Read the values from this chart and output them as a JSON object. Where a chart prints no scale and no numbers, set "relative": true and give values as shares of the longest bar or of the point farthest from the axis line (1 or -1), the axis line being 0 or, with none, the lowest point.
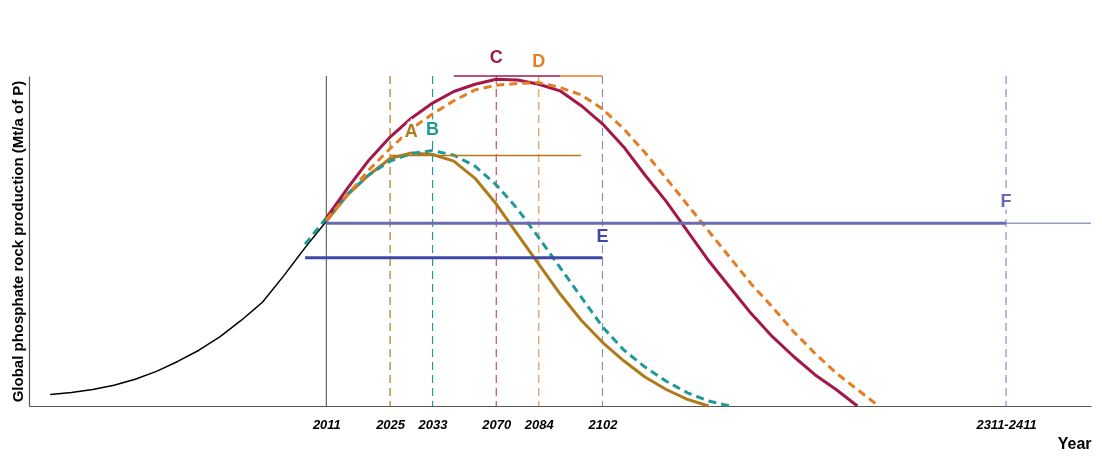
{
  "chart_data": {
    "type": "line",
    "relative": true,
    "xlabel": "Year",
    "ylabel": "Global phosphate rock production (Mt/a of P)",
    "categories": [
      null,
      null,
      null,
      null,
      null,
      null,
      null,
      null,
      null,
      null,
      null,
      null,
      null,
      null,
      "2011",
      null,
      null,
      "2025",
      null,
      "2033",
      null,
      null,
      "2070",
      null,
      "2084",
      null,
      null,
      "2102",
      null,
      null,
      null,
      null,
      null,
      null,
      null,
      null,
      null,
      null,
      null,
      null,
      null,
      null,
      null,
      null,
      null,
      null,
      "2311-2411",
      null,
      null,
      null,
      null
    ],
    "tick_labels": "x",
    "grid": false,
    "legend": false,
    "ref_lines": [
      {
        "axis": "x",
        "value": "2011",
        "color": "#666666",
        "line_style": "solid"
      },
      {
        "axis": "x",
        "value": "2025",
        "color": "#b07a1a",
        "line_style": "dashed"
      },
      {
        "axis": "x",
        "value": "2033",
        "color": "#1f9a96",
        "line_style": "dashed"
      },
      {
        "axis": "x",
        "value": "2070",
        "color": "#c2507a",
        "line_style": "dashed"
      },
      {
        "axis": "x",
        "value": "2084",
        "color": "#e8964f",
        "line_style": "dashed"
      },
      {
        "axis": "x",
        "value": "2102",
        "color": "#8a8cc4",
        "line_style": "dashed"
      },
      {
        "axis": "x",
        "value": "2311-2411",
        "color": "#8a8cc4",
        "line_style": "dashed"
      }
    ],
    "series": [
      {
        "color": "#000000",
        "values": [
          null,
          0.035,
          0.041,
          0.05,
          0.063,
          0.081,
          0.105,
          0.135,
          0.169,
          0.21,
          0.26,
          0.315,
          0.395,
          0.48,
          0.56,
          null,
          null,
          null,
          null,
          null,
          null,
          null,
          null,
          null,
          null,
          null,
          null,
          null,
          null,
          null,
          null,
          null,
          null,
          null,
          null,
          null,
          null,
          null,
          null,
          null,
          null,
          null,
          null,
          null,
          null,
          null,
          null,
          null,
          null,
          null,
          null
        ]
      },
      {
        "name": "A",
        "color": "#b07a1a",
        "values": [
          null,
          null,
          null,
          null,
          null,
          null,
          null,
          null,
          null,
          null,
          null,
          null,
          null,
          null,
          0.56,
          0.64,
          0.7,
          0.75,
          0.767,
          0.762,
          0.742,
          0.69,
          0.612,
          0.52,
          0.43,
          0.34,
          0.26,
          0.193,
          0.137,
          0.088,
          0.05,
          0.02,
          0,
          null,
          null,
          null,
          null,
          null,
          null,
          null,
          null,
          null,
          null,
          null,
          null,
          null,
          null,
          null,
          null,
          null,
          null
        ]
      },
      {
        "name": "B",
        "color": "#1f9a96",
        "line_style": "dashed",
        "values": [
          null,
          null,
          null,
          null,
          null,
          null,
          null,
          null,
          null,
          null,
          null,
          null,
          null,
          0.49,
          0.57,
          0.643,
          0.7,
          0.742,
          0.765,
          0.774,
          0.76,
          0.727,
          0.67,
          0.597,
          0.51,
          0.42,
          0.33,
          0.24,
          0.17,
          0.118,
          0.075,
          0.04,
          0.015,
          0,
          null,
          null,
          null,
          null,
          null,
          null,
          null,
          null,
          null,
          null,
          null,
          null,
          null,
          null,
          null,
          null,
          null
        ]
      },
      {
        "name": "C",
        "color": "#a3174a",
        "values": [
          null,
          null,
          null,
          null,
          null,
          null,
          null,
          null,
          null,
          null,
          null,
          null,
          null,
          null,
          0.57,
          0.66,
          0.745,
          0.815,
          0.872,
          0.918,
          0.953,
          0.975,
          0.99,
          0.988,
          0.975,
          0.955,
          0.91,
          0.855,
          0.785,
          0.7,
          0.62,
          0.53,
          0.44,
          0.36,
          0.28,
          0.21,
          0.15,
          0.095,
          0.05,
          0,
          null,
          null,
          null,
          null,
          null,
          null,
          null,
          null,
          null,
          null,
          null
        ]
      },
      {
        "name": "D",
        "color": "#e57d22",
        "line_style": "dashed",
        "values": [
          null,
          null,
          null,
          null,
          null,
          null,
          null,
          null,
          null,
          null,
          null,
          null,
          null,
          null,
          0.565,
          0.64,
          0.715,
          0.78,
          0.84,
          0.885,
          0.925,
          0.958,
          0.972,
          0.977,
          0.98,
          0.965,
          0.943,
          0.9,
          0.84,
          0.768,
          0.69,
          0.61,
          0.53,
          0.45,
          0.37,
          0.3,
          0.225,
          0.16,
          0.1,
          0.05,
          0,
          null,
          null,
          null,
          null,
          null,
          null,
          null,
          null,
          null,
          null
        ]
      },
      {
        "name": "E",
        "color": "#3f48a8",
        "values": [
          null,
          null,
          null,
          null,
          null,
          null,
          null,
          null,
          null,
          null,
          null,
          null,
          null,
          0.449,
          0.449,
          0.449,
          0.449,
          0.449,
          0.449,
          0.449,
          0.449,
          0.449,
          0.449,
          0.449,
          0.449,
          0.449,
          0.449,
          0.449,
          null,
          null,
          null,
          null,
          null,
          null,
          null,
          null,
          null,
          null,
          null,
          null,
          null,
          null,
          null,
          null,
          null,
          null,
          null,
          null,
          null,
          null,
          null
        ]
      },
      {
        "name": "F",
        "color": "#6a6cb0",
        "values": [
          null,
          null,
          null,
          null,
          null,
          null,
          null,
          null,
          null,
          null,
          null,
          null,
          null,
          null,
          0.554,
          0.554,
          0.554,
          0.554,
          0.554,
          0.554,
          0.554,
          0.554,
          0.554,
          0.554,
          0.554,
          0.554,
          0.554,
          0.554,
          0.554,
          0.554,
          0.554,
          0.554,
          0.554,
          0.554,
          0.554,
          0.554,
          0.554,
          0.554,
          0.554,
          0.554,
          0.554,
          0.554,
          0.554,
          0.554,
          0.554,
          0.554,
          0.554,
          null,
          null,
          null,
          null
        ]
      },
      {
        "color": "#9a9cc8",
        "values": [
          null,
          null,
          null,
          null,
          null,
          null,
          null,
          null,
          null,
          null,
          null,
          null,
          null,
          null,
          null,
          null,
          null,
          null,
          null,
          null,
          null,
          null,
          null,
          null,
          null,
          null,
          null,
          null,
          null,
          null,
          null,
          null,
          null,
          null,
          null,
          null,
          null,
          null,
          null,
          null,
          null,
          null,
          null,
          null,
          null,
          null,
          0.554,
          0.554,
          0.554,
          0.554,
          0.554
        ]
      },
      {
        "color": "#b07a1a",
        "values": [
          null,
          null,
          null,
          null,
          null,
          null,
          null,
          null,
          null,
          null,
          null,
          null,
          null,
          null,
          null,
          null,
          null,
          0.759,
          0.759,
          0.759,
          0.759,
          0.759,
          0.759,
          0.759,
          0.759,
          0.759,
          0.759,
          null,
          null,
          null,
          null,
          null,
          null,
          null,
          null,
          null,
          null,
          null,
          null,
          null,
          null,
          null,
          null,
          null,
          null,
          null,
          null,
          null,
          null,
          null,
          null
        ]
      },
      {
        "color": "#e57d22",
        "values": [
          null,
          null,
          null,
          null,
          null,
          null,
          null,
          null,
          null,
          null,
          null,
          null,
          null,
          null,
          null,
          null,
          null,
          null,
          null,
          null,
          null,
          null,
          null,
          null,
          null,
          1,
          1,
          1,
          null,
          null,
          null,
          null,
          null,
          null,
          null,
          null,
          null,
          null,
          null,
          null,
          null,
          null,
          null,
          null,
          null,
          null,
          null,
          null,
          null,
          null,
          null
        ]
      },
      {
        "color": "#a3174a",
        "values": [
          null,
          null,
          null,
          null,
          null,
          null,
          null,
          null,
          null,
          null,
          null,
          null,
          null,
          null,
          null,
          null,
          null,
          null,
          null,
          null,
          1,
          1,
          1,
          1,
          1,
          1,
          null,
          null,
          null,
          null,
          null,
          null,
          null,
          null,
          null,
          null,
          null,
          null,
          null,
          null,
          null,
          null,
          null,
          null,
          null,
          null,
          null,
          null,
          null,
          null,
          null
        ]
      }
    ]
  }
}
